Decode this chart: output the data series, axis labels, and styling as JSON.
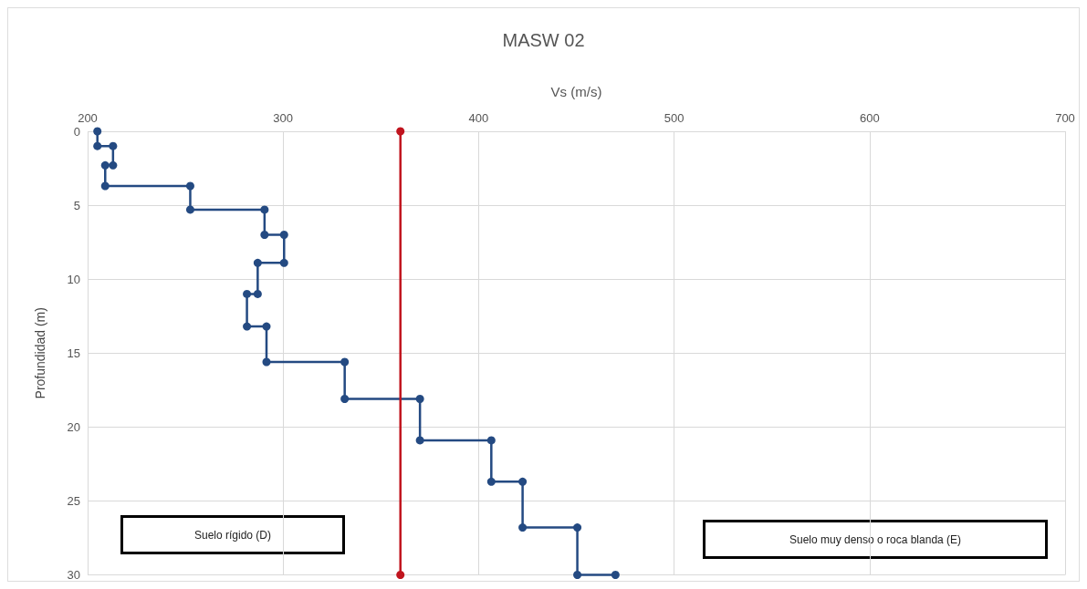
{
  "chart_data": {
    "type": "line",
    "title": "MASW 02",
    "xlabel": "Vs (m/s)",
    "ylabel": "Profundidad (m)",
    "series": [
      {
        "color": "#244a82",
        "x": [
          205,
          205,
          213,
          213,
          209,
          209,
          252.5,
          252.5,
          290.5,
          290.5,
          300.5,
          300.5,
          287,
          287,
          281.5,
          281.5,
          291.5,
          291.5,
          331.5,
          331.5,
          370,
          370,
          406.5,
          406.5,
          422.5,
          422.5,
          450.5,
          450.5,
          470
        ],
        "values": [
          0,
          1,
          1,
          2.3,
          2.3,
          3.7,
          3.7,
          5.3,
          5.3,
          7,
          7,
          8.9,
          8.9,
          11,
          11,
          13.2,
          13.2,
          15.6,
          15.6,
          18.1,
          18.1,
          20.9,
          20.9,
          23.7,
          23.7,
          26.8,
          26.8,
          30,
          30
        ]
      },
      {
        "color": "#c0141e",
        "x": [
          360,
          360
        ],
        "values": [
          0,
          30
        ]
      }
    ],
    "xlim": [
      200,
      700
    ],
    "xticks": [
      200,
      300,
      400,
      500,
      600,
      700
    ],
    "ylim": [
      30,
      0
    ],
    "yticks": [
      0,
      5,
      10,
      15,
      20,
      25,
      30
    ],
    "grid": true,
    "marker": "circle",
    "line_style": "solid",
    "annotations": [
      "Suelo rígido (D)",
      "Suelo muy denso o roca blanda (E)"
    ]
  }
}
